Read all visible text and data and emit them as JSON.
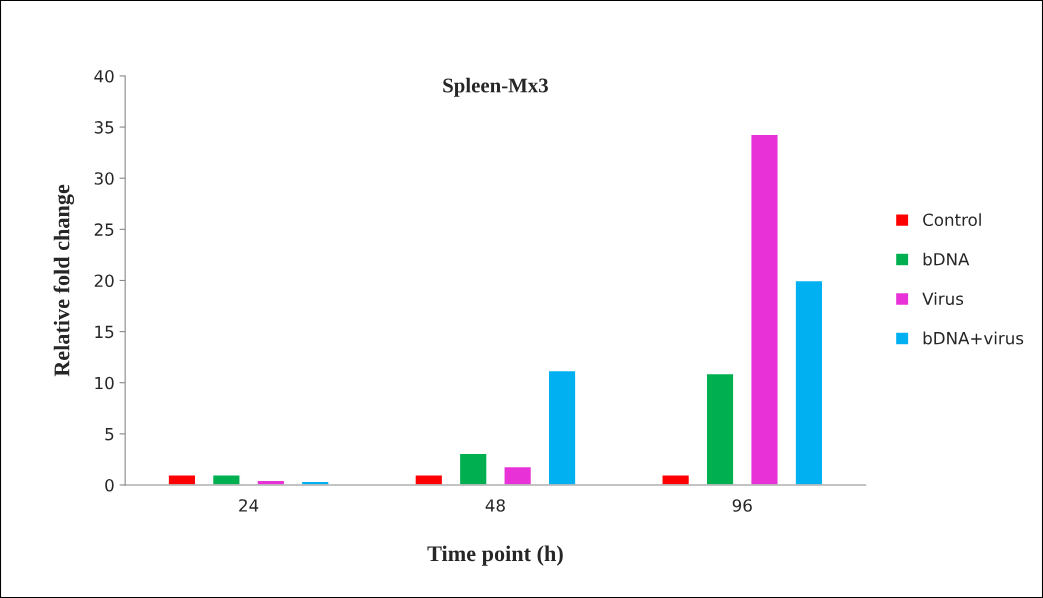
{
  "chart_data": {
    "type": "bar",
    "title": "Spleen-Mx3",
    "xlabel": "Time point (h)",
    "ylabel": "Relative fold change",
    "categories": [
      "24",
      "48",
      "96"
    ],
    "series": [
      {
        "name": "Control",
        "color": "#ff0000",
        "values": [
          1.0,
          1.0,
          1.0
        ]
      },
      {
        "name": "bDNA",
        "color": "#00b050",
        "values": [
          1.0,
          3.1,
          10.9
        ]
      },
      {
        "name": "Virus",
        "color": "#e832d8",
        "values": [
          0.45,
          1.8,
          34.3
        ]
      },
      {
        "name": "bDNA+virus",
        "color": "#00b0f0",
        "values": [
          0.35,
          11.2,
          20.0
        ]
      }
    ],
    "ylim": [
      0,
      40
    ],
    "yticks": [
      0,
      5,
      10,
      15,
      20,
      25,
      30,
      35,
      40
    ],
    "grid": false,
    "legend": "right"
  }
}
